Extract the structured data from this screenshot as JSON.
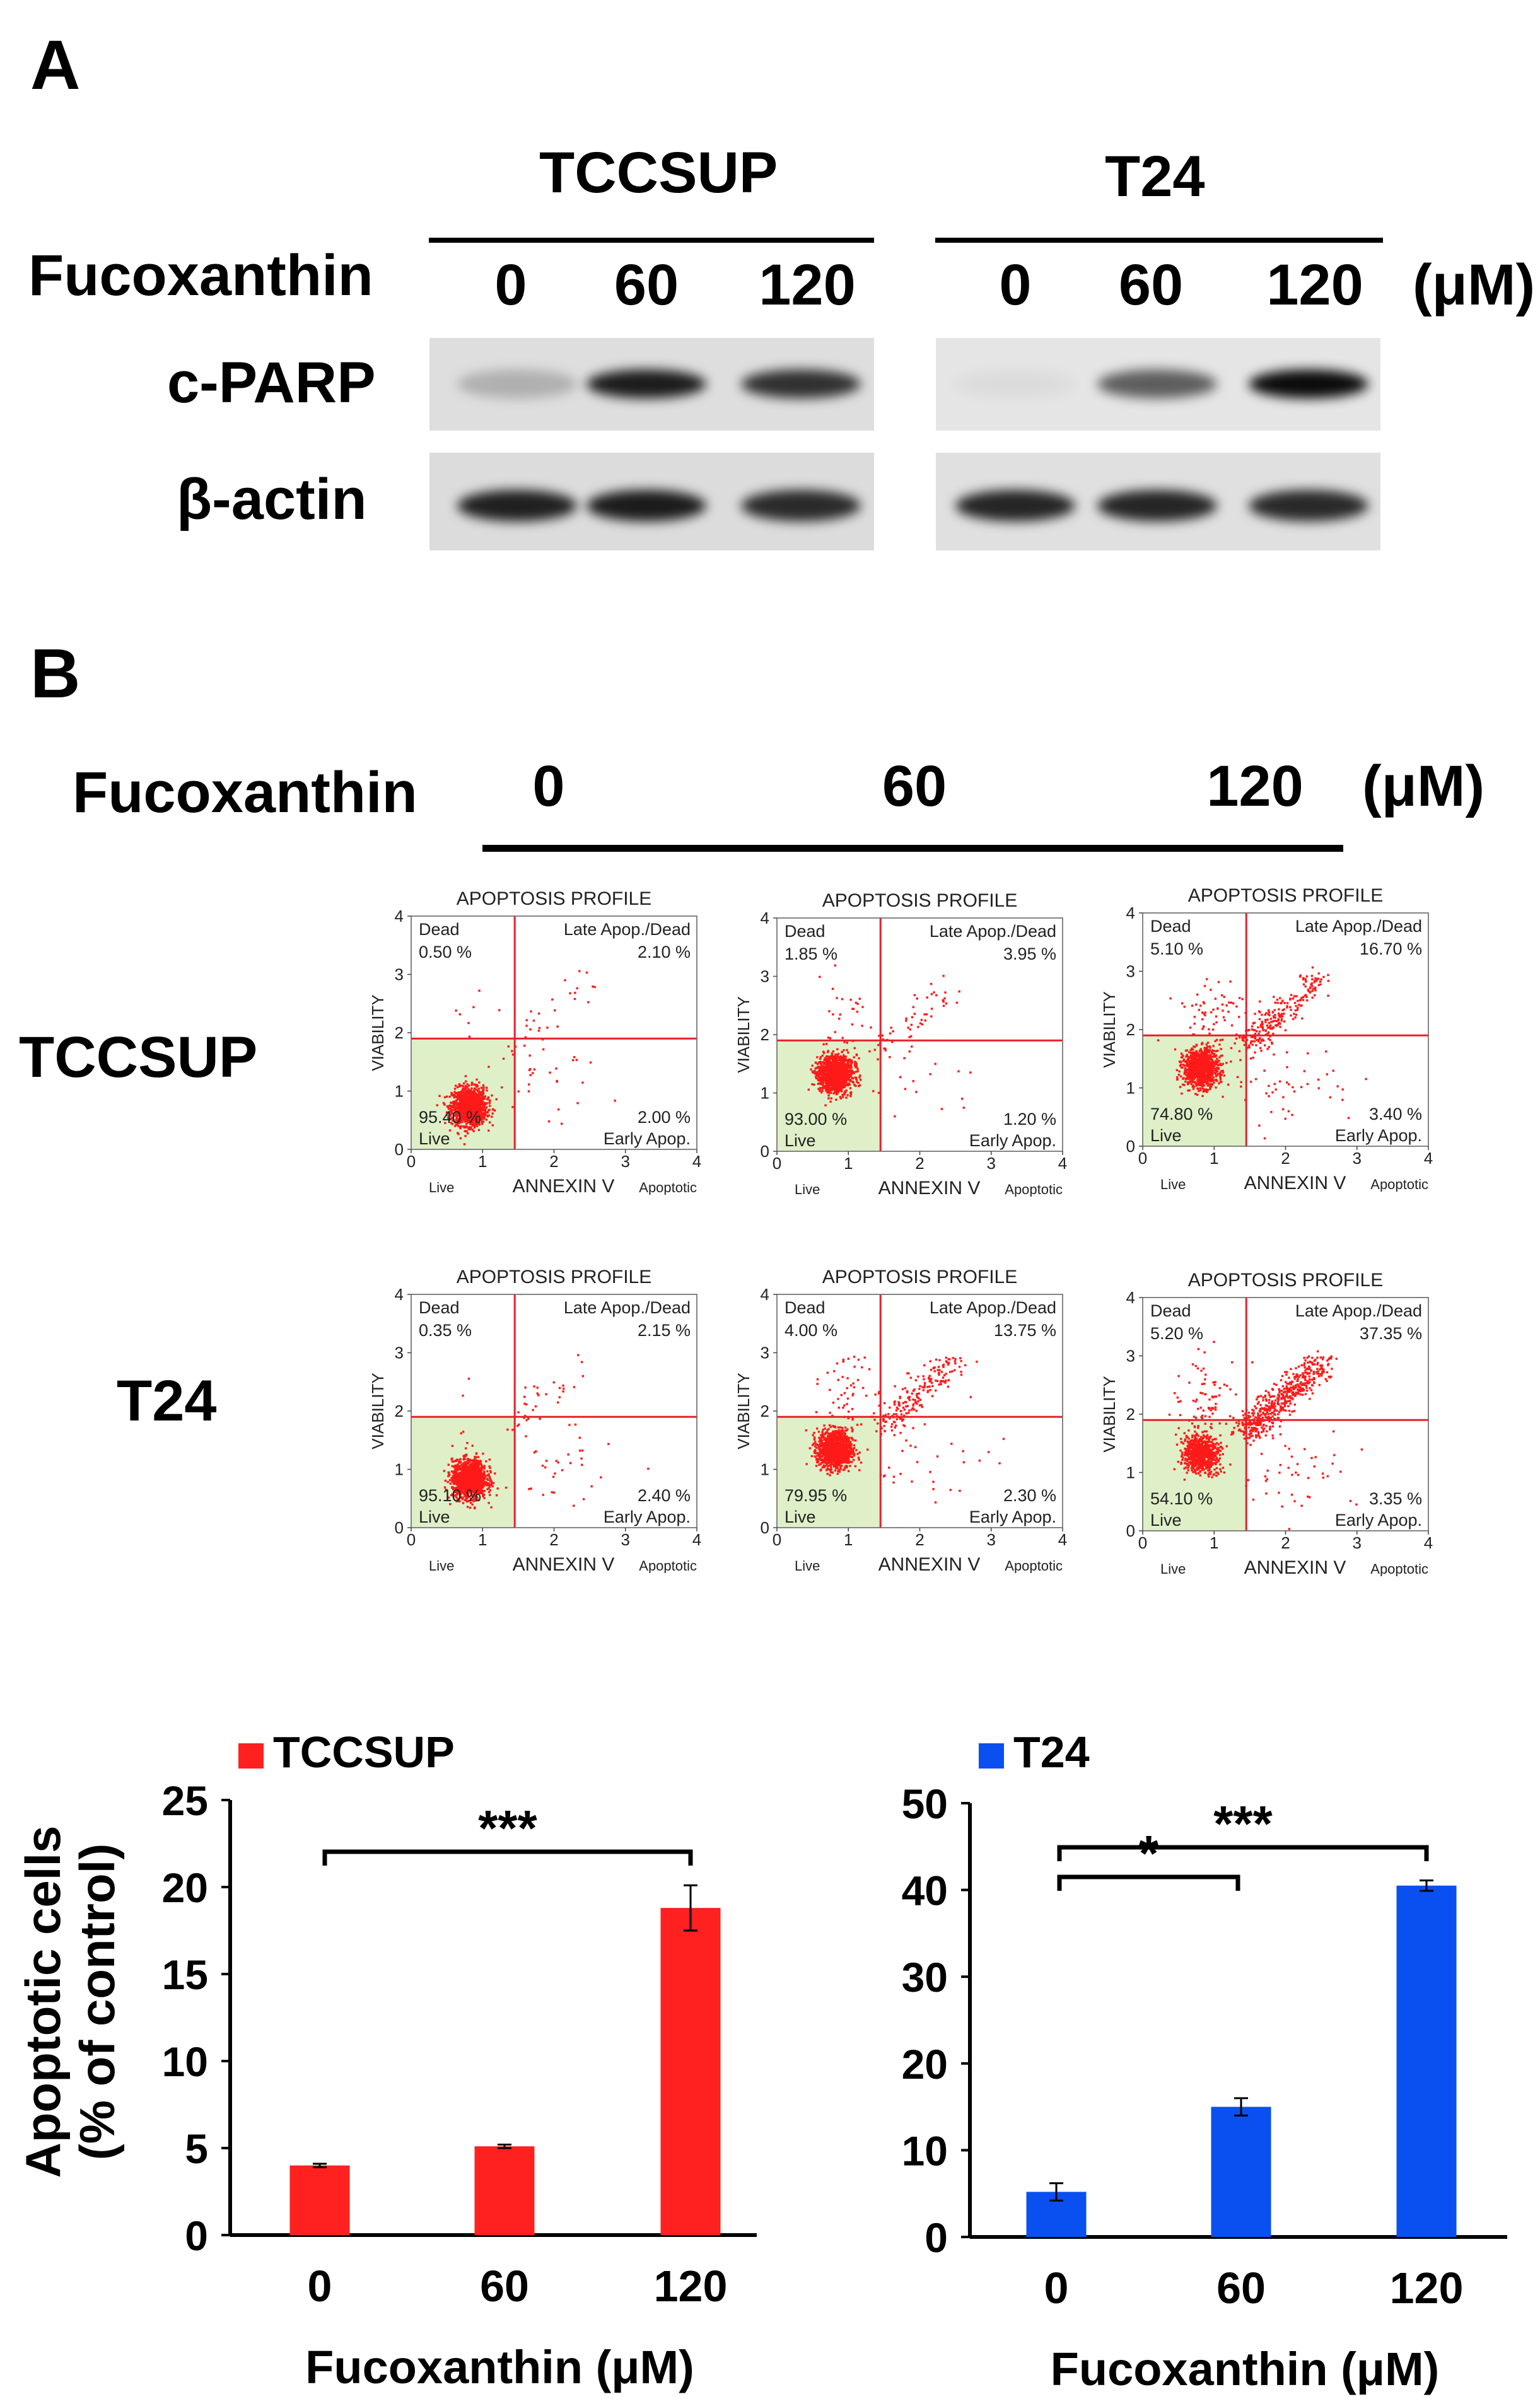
{
  "panel_a": {
    "label": "A",
    "cell_lines": [
      "TCCSUP",
      "T24"
    ],
    "treatment_label": "Fucoxanthin",
    "doses": [
      "0",
      "60",
      "120"
    ],
    "unit": "(μM)",
    "proteins": [
      "c-PARP",
      "β-actin"
    ],
    "band_intensity": {
      "TCCSUP": {
        "c-PARP": [
          0.22,
          0.92,
          0.82
        ],
        "β-actin": [
          0.9,
          0.92,
          0.85
        ]
      },
      "T24": {
        "c-PARP": [
          0.04,
          0.62,
          1.0
        ],
        "β-actin": [
          0.88,
          0.88,
          0.86
        ]
      }
    }
  },
  "panel_b": {
    "label": "B",
    "treatment_label": "Fucoxanthin",
    "doses": [
      "0",
      "60",
      "120"
    ],
    "unit": "(μM)",
    "row_labels": [
      "TCCSUP",
      "T24"
    ],
    "plot_common": {
      "title": "APOPTOSIS PROFILE",
      "ylabel": "VIABILITY",
      "xlabel": "ANNEXIN V",
      "x_left": "Live",
      "x_right": "Apoptotic",
      "ticks": [
        "0",
        "1",
        "2",
        "3",
        "4"
      ],
      "q_ul": "Dead",
      "q_ur": "Late Apop./Dead",
      "q_ll": "Live",
      "q_lr": "Early Apop."
    },
    "flow": [
      [
        {
          "dead": "0.50 %",
          "late": "2.10 %",
          "live": "95.40 %",
          "early": "2.00 %"
        },
        {
          "dead": "1.85 %",
          "late": "3.95 %",
          "live": "93.00 %",
          "early": "1.20 %"
        },
        {
          "dead": "5.10 %",
          "late": "16.70 %",
          "live": "74.80 %",
          "early": "3.40 %"
        }
      ],
      [
        {
          "dead": "0.35 %",
          "late": "2.15 %",
          "live": "95.10 %",
          "early": "2.40 %"
        },
        {
          "dead": "4.00 %",
          "late": "13.75 %",
          "live": "79.95 %",
          "early": "2.30 %"
        },
        {
          "dead": "5.20 %",
          "late": "37.35 %",
          "live": "54.10 %",
          "early": "3.35 %"
        }
      ]
    ]
  },
  "ylabel_line1": "Apoptotic cells",
  "ylabel_line2": "(% of control)",
  "chart_data": [
    {
      "type": "bar",
      "legend": "TCCSUP",
      "color": "#ff2020",
      "categories": [
        "0",
        "60",
        "120"
      ],
      "values": [
        4.0,
        5.1,
        18.8
      ],
      "errors": [
        0.1,
        0.1,
        1.3
      ],
      "ylim": [
        0,
        25
      ],
      "yticks": [
        "0",
        "5",
        "10",
        "15",
        "20",
        "25"
      ],
      "xlabel": "Fucoxanthin (μM)",
      "ylabel": "Apoptotic cells (% of control)",
      "significance": [
        {
          "from": "0",
          "to": "120",
          "label": "***"
        }
      ]
    },
    {
      "type": "bar",
      "legend": "T24",
      "color": "#0a50f0",
      "categories": [
        "0",
        "60",
        "120"
      ],
      "values": [
        5.2,
        15.0,
        40.5
      ],
      "errors": [
        1.0,
        1.0,
        0.6
      ],
      "ylim": [
        0,
        50
      ],
      "yticks": [
        "0",
        "10",
        "20",
        "30",
        "40",
        "50"
      ],
      "xlabel": "Fucoxanthin (μM)",
      "ylabel": "Apoptotic cells (% of control)",
      "significance": [
        {
          "from": "0",
          "to": "60",
          "label": "*"
        },
        {
          "from": "0",
          "to": "120",
          "label": "***"
        }
      ]
    }
  ]
}
